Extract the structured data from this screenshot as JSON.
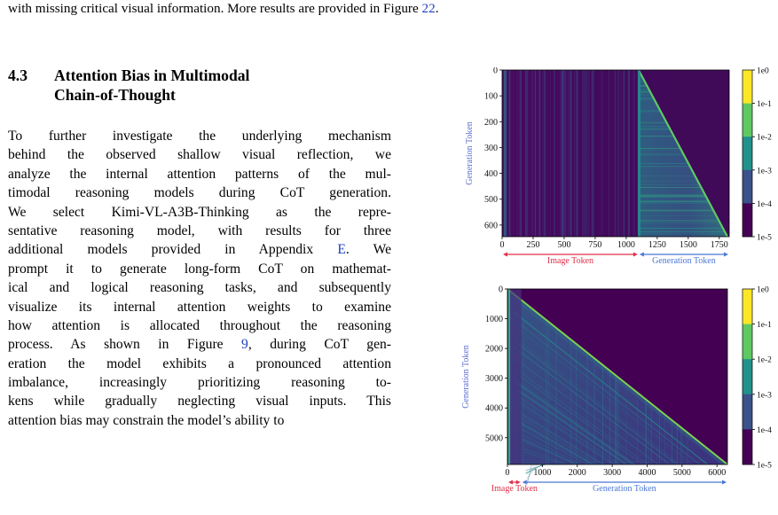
{
  "caption_tail": {
    "text": "with missing critical visual information. More results are provided in Figure ",
    "ref": "22",
    "end": "."
  },
  "section": {
    "number": "4.3",
    "title_line1": "Attention Bias in Multimodal",
    "title_line2": "Chain-of-Thought"
  },
  "paragraph": {
    "lines": [
      {
        "text": "To further investigate the underlying mechanism"
      },
      {
        "text": "behind the observed shallow visual reflection, we"
      },
      {
        "text": "analyze the internal attention patterns of the mul-"
      },
      {
        "text": "timodal reasoning models during CoT generation."
      },
      {
        "text": "We select Kimi-VL-A3B-Thinking as the repre-"
      },
      {
        "text": "sentative reasoning model, with results for three"
      },
      {
        "pre": "additional models provided in Appendix ",
        "ref": "E",
        "post": ". We"
      },
      {
        "text": "prompt it to generate long-form CoT on mathemat-"
      },
      {
        "text": "ical and logical reasoning tasks, and subsequently"
      },
      {
        "text": "visualize its internal attention weights to examine"
      },
      {
        "text": "how attention is allocated throughout the reasoning"
      },
      {
        "pre": "process.  As shown in Figure ",
        "ref": "9",
        "post": ", during CoT gen-"
      },
      {
        "text": "eration the model exhibits a pronounced attention"
      },
      {
        "text": "imbalance, increasingly prioritizing reasoning to-"
      },
      {
        "text": "kens while gradually neglecting visual inputs. This"
      },
      {
        "text": "attention bias may constrain the model’s ability to"
      }
    ]
  },
  "colors": {
    "link": "#1f3fbf",
    "image_token_arrow": "#e0304a",
    "generation_token_arrow": "#4a78d8",
    "axis_label": "#5b6ed0",
    "colormap": [
      "#440154",
      "#3b528b",
      "#21918c",
      "#5ec962",
      "#fde725"
    ]
  },
  "chart_data": [
    {
      "type": "heatmap",
      "ylabel": "Generation Token",
      "x_ticks": [
        "0",
        "250",
        "500",
        "750",
        "1000",
        "1250",
        "1500",
        "1750"
      ],
      "y_ticks": [
        "0",
        "100",
        "200",
        "300",
        "400",
        "500",
        "600"
      ],
      "xlim": [
        0,
        1830
      ],
      "ylim": [
        0,
        645
      ],
      "image_token_end": 1100,
      "x_regions": [
        {
          "label": "Image Token",
          "from": 0,
          "to": 1100
        },
        {
          "label": "Generation Token",
          "from": 1100,
          "to": 1830
        }
      ],
      "colorbar": {
        "ticks": [
          "1e0",
          "1e-1",
          "1e-2",
          "1e-3",
          "1e-4",
          "1e-5"
        ],
        "scale": "log"
      }
    },
    {
      "type": "heatmap",
      "ylabel": "Generation Token",
      "x_ticks": [
        "0",
        "1000",
        "2000",
        "3000",
        "4000",
        "5000",
        "6000"
      ],
      "y_ticks": [
        "0",
        "1000",
        "2000",
        "3000",
        "4000",
        "5000"
      ],
      "xlim": [
        0,
        6300
      ],
      "ylim": [
        0,
        5900
      ],
      "image_token_end": 400,
      "x_regions": [
        {
          "label": "Image Token",
          "from": 0,
          "to": 400
        },
        {
          "label": "Generation Token",
          "from": 400,
          "to": 6300
        }
      ],
      "colorbar": {
        "ticks": [
          "1e0",
          "1e-1",
          "1e-2",
          "1e-3",
          "1e-4",
          "1e-5"
        ],
        "scale": "log"
      }
    }
  ]
}
